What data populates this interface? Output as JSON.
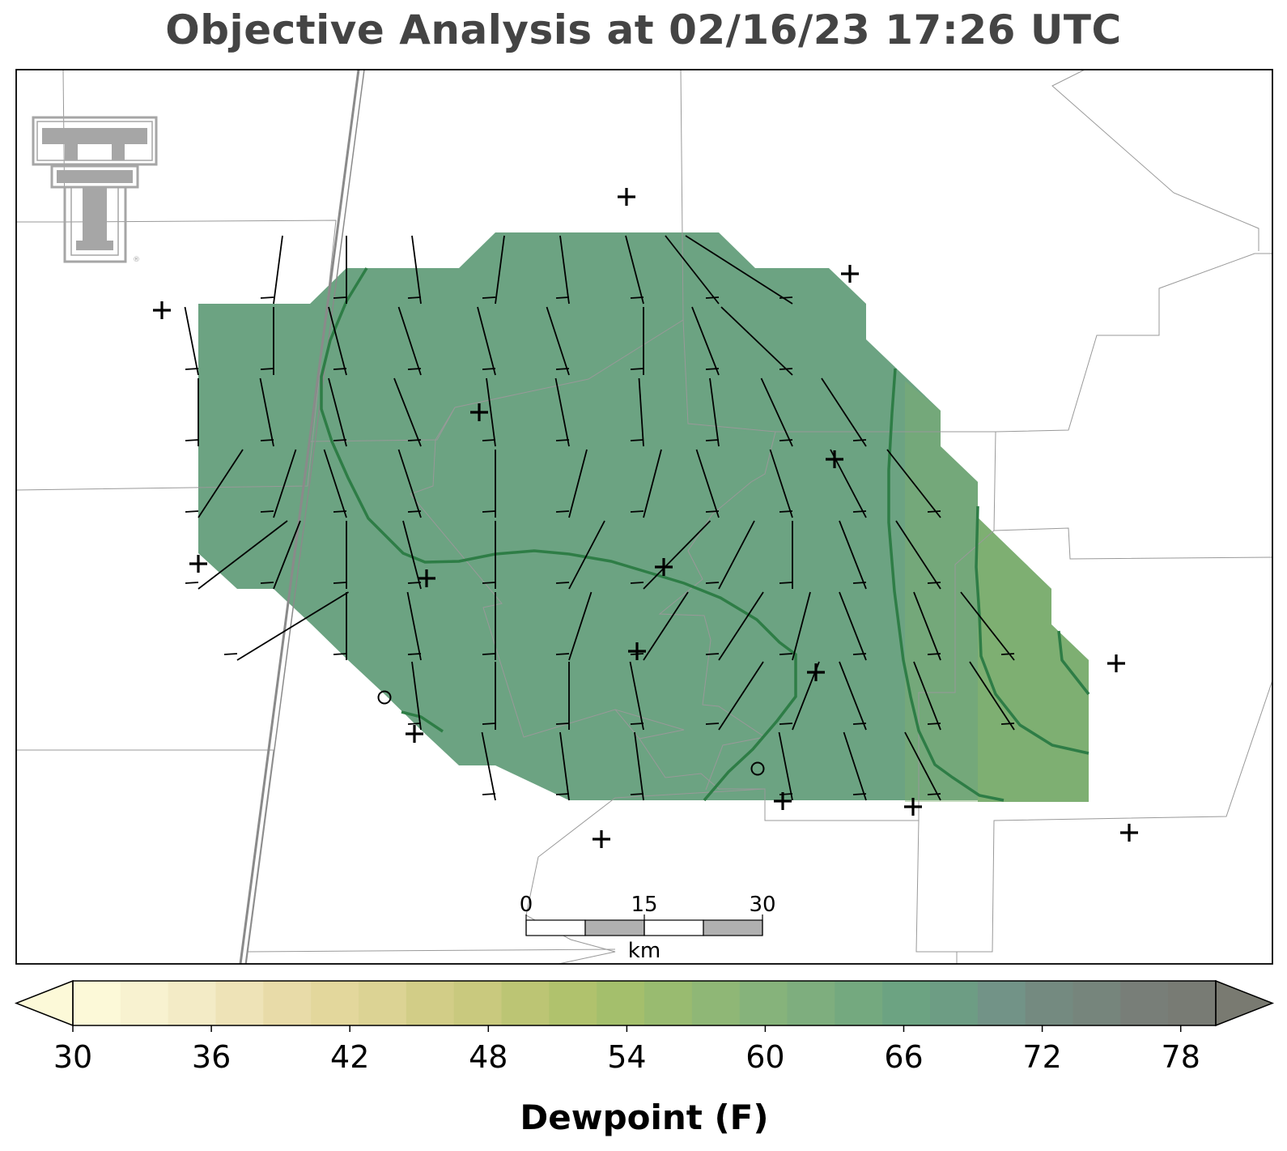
{
  "title": "Objective Analysis at 02/16/23 17:26 UTC",
  "colors": {
    "shade_main": "#6ca382",
    "shade_east": "#7eaf72",
    "contour": "#2e7d46",
    "border": "#999999",
    "highway": "#8a8a8a",
    "barb": "#000000",
    "logo": "#a6a6a6"
  },
  "icons": {
    "logo": "texas-tech-double-t-logo",
    "station": "plus-marker",
    "calm": "circle-marker"
  },
  "scalebar": {
    "ticks": [
      "0",
      "15",
      "30"
    ],
    "unit": "km"
  },
  "colorbar": {
    "label": "Dewpoint (F)",
    "ticks": [
      "30",
      "36",
      "42",
      "48",
      "54",
      "60",
      "66",
      "72",
      "78"
    ],
    "min": 30,
    "max": 80,
    "step": 2,
    "colors": [
      "#fcf9d8",
      "#f8f2d0",
      "#f3ebc6",
      "#eee3b7",
      "#e8dba8",
      "#e3d79c",
      "#dcd394",
      "#d2cd87",
      "#c9c97e",
      "#bcc574",
      "#b0c26d",
      "#a4bf6c",
      "#99bb70",
      "#8fb776",
      "#86b37b",
      "#7eae7e",
      "#74a97f",
      "#6ca382",
      "#6d9d84",
      "#729387",
      "#748a80",
      "#76857c",
      "#787e78",
      "#787b74",
      "#797a71"
    ]
  }
}
